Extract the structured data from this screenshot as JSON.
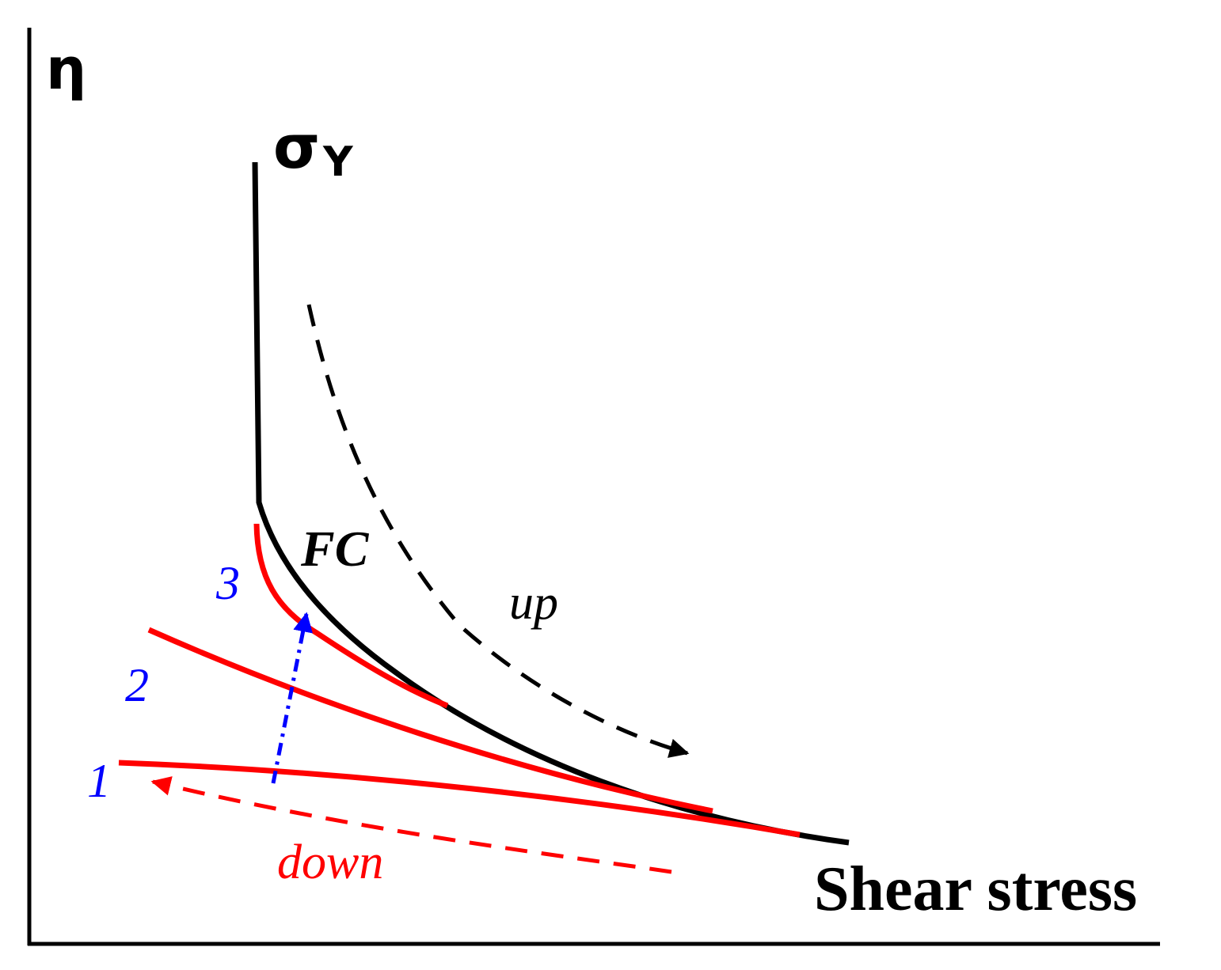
{
  "labels": {
    "y_axis": "η",
    "yield_main": "σ",
    "yield_sub": "Y",
    "fc": "FC",
    "up": "up",
    "down": "down",
    "x_axis": "Shear stress",
    "curve1": "1",
    "curve2": "2",
    "curve3": "3"
  },
  "colors": {
    "axis": "#000000",
    "flow_curve": "#000000",
    "red_curves": "#ff0000",
    "blue_labels": "#0000ff",
    "blue_arrow": "#0000ff"
  }
}
